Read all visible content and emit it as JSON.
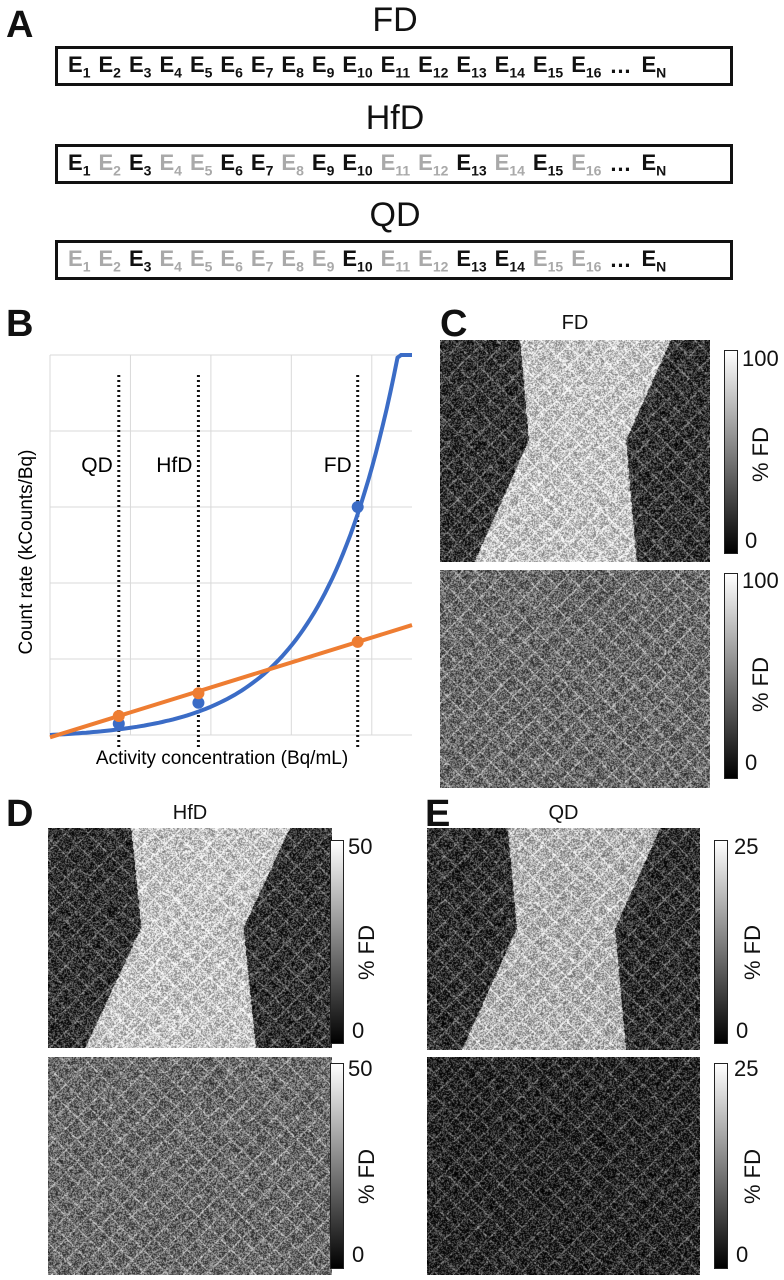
{
  "panels": {
    "a": "A",
    "b": "B",
    "c": "C",
    "d": "D",
    "e": "E"
  },
  "panel_a": {
    "rows": [
      {
        "title": "FD",
        "events": [
          {
            "sub": "1",
            "on": true
          },
          {
            "sub": "2",
            "on": true
          },
          {
            "sub": "3",
            "on": true
          },
          {
            "sub": "4",
            "on": true
          },
          {
            "sub": "5",
            "on": true
          },
          {
            "sub": "6",
            "on": true
          },
          {
            "sub": "7",
            "on": true
          },
          {
            "sub": "8",
            "on": true
          },
          {
            "sub": "9",
            "on": true
          },
          {
            "sub": "10",
            "on": true
          },
          {
            "sub": "11",
            "on": true
          },
          {
            "sub": "12",
            "on": true
          },
          {
            "sub": "13",
            "on": true
          },
          {
            "sub": "14",
            "on": true
          },
          {
            "sub": "15",
            "on": true
          },
          {
            "sub": "16",
            "on": true
          }
        ],
        "last": "N"
      },
      {
        "title": "HfD",
        "events": [
          {
            "sub": "1",
            "on": true
          },
          {
            "sub": "2",
            "on": false
          },
          {
            "sub": "3",
            "on": true
          },
          {
            "sub": "4",
            "on": false
          },
          {
            "sub": "5",
            "on": false
          },
          {
            "sub": "6",
            "on": true
          },
          {
            "sub": "7",
            "on": true
          },
          {
            "sub": "8",
            "on": false
          },
          {
            "sub": "9",
            "on": true
          },
          {
            "sub": "10",
            "on": true
          },
          {
            "sub": "11",
            "on": false
          },
          {
            "sub": "12",
            "on": false
          },
          {
            "sub": "13",
            "on": true
          },
          {
            "sub": "14",
            "on": false
          },
          {
            "sub": "15",
            "on": true
          },
          {
            "sub": "16",
            "on": false
          }
        ],
        "last": "N"
      },
      {
        "title": "QD",
        "events": [
          {
            "sub": "1",
            "on": false
          },
          {
            "sub": "2",
            "on": false
          },
          {
            "sub": "3",
            "on": true
          },
          {
            "sub": "4",
            "on": false
          },
          {
            "sub": "5",
            "on": false
          },
          {
            "sub": "6",
            "on": false
          },
          {
            "sub": "7",
            "on": false
          },
          {
            "sub": "8",
            "on": false
          },
          {
            "sub": "9",
            "on": false
          },
          {
            "sub": "10",
            "on": true
          },
          {
            "sub": "11",
            "on": false
          },
          {
            "sub": "12",
            "on": false
          },
          {
            "sub": "13",
            "on": true
          },
          {
            "sub": "14",
            "on": true
          },
          {
            "sub": "15",
            "on": false
          },
          {
            "sub": "16",
            "on": false
          }
        ],
        "last": "N"
      }
    ],
    "event_letter": "E",
    "ellipsis": "…",
    "dark_color": "#111111",
    "light_color": "#a9a9a9"
  },
  "chart_data": {
    "type": "line",
    "xlabel": "Activity concentration (Bq/mL)",
    "ylabel": "Count rate (kCounts/Bq)",
    "grid": true,
    "markers": [
      {
        "label": "QD",
        "x": 0.19
      },
      {
        "label": "HfD",
        "x": 0.41
      },
      {
        "label": "FD",
        "x": 0.85
      }
    ],
    "series": [
      {
        "color": "#3b6cc6",
        "curve": "exponential",
        "points": [
          {
            "x": 0.19,
            "y": 0.03
          },
          {
            "x": 0.41,
            "y": 0.085
          },
          {
            "x": 0.85,
            "y": 0.6
          }
        ]
      },
      {
        "color": "#ee7d32",
        "curve": "linear",
        "points": [
          {
            "x": 0.19,
            "y": 0.05
          },
          {
            "x": 0.41,
            "y": 0.11
          },
          {
            "x": 0.85,
            "y": 0.245
          }
        ]
      }
    ]
  },
  "images": {
    "c": {
      "title": "FD",
      "top_max": "100",
      "top_min": "0",
      "bot_max": "100",
      "bot_min": "0",
      "axis": "% FD"
    },
    "d": {
      "title": "HfD",
      "top_max": "50",
      "top_min": "0",
      "bot_max": "50",
      "bot_min": "0",
      "axis": "% FD"
    },
    "e": {
      "title": "QD",
      "top_max": "25",
      "top_min": "0",
      "bot_max": "25",
      "bot_min": "0",
      "axis": "% FD"
    }
  }
}
